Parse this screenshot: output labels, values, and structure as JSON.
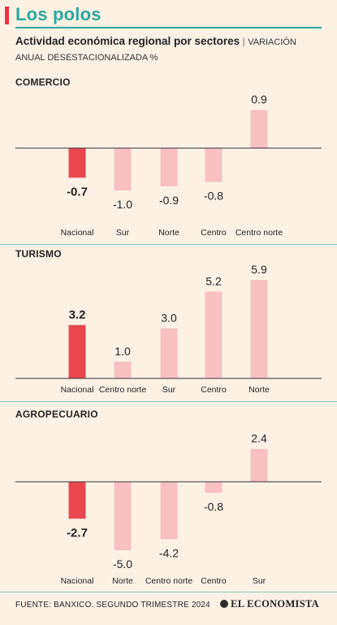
{
  "header": {
    "title": "Los polos",
    "subtitle_bold": "Actividad económica regional por sectores",
    "subtitle_sep": "|",
    "subtitle_light": "VARIACIÓN ANUAL DESESTACIONALIZADA %"
  },
  "colors": {
    "highlight": "#e8474f",
    "regular": "#f8c0c2",
    "accent": "#2aa7a0"
  },
  "chart_data": [
    {
      "type": "bar",
      "title": "COMERCIO",
      "categories": [
        "Nacional",
        "Sur",
        "Norte",
        "Centro",
        "Centro norte"
      ],
      "values": [
        -0.7,
        -1.0,
        -0.9,
        -0.8,
        0.9
      ],
      "value_labels": [
        "-0.7",
        "-1.0",
        "-0.9",
        "-0.8",
        "0.9"
      ],
      "highlight": "Nacional"
    },
    {
      "type": "bar",
      "title": "TURISMO",
      "categories": [
        "Nacional",
        "Centro norte",
        "Sur",
        "Centro",
        "Norte"
      ],
      "values": [
        3.2,
        1.0,
        3.0,
        5.2,
        5.9
      ],
      "value_labels": [
        "3.2",
        "1.0",
        "3.0",
        "5.2",
        "5.9"
      ],
      "highlight": "Nacional"
    },
    {
      "type": "bar",
      "title": "AGROPECUARIO",
      "categories": [
        "Nacional",
        "Norte",
        "Centro norte",
        "Centro",
        "Sur"
      ],
      "values": [
        -2.7,
        -5.0,
        -4.2,
        -0.8,
        2.4
      ],
      "value_labels": [
        "-2.7",
        "-5.0",
        "-4.2",
        "-0.8",
        "2.4"
      ],
      "highlight": "Nacional"
    }
  ],
  "footer": {
    "source": "FUENTE: BANXICO. SEGUNDO TRIMESTRE 2024",
    "logo": "EL ECONOMISTA"
  }
}
